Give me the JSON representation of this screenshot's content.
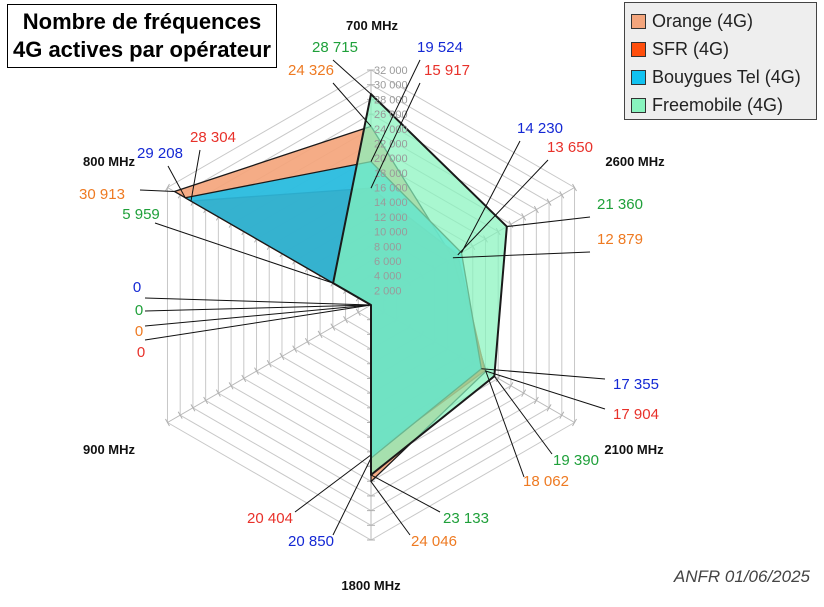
{
  "title": {
    "line1": "Nombre de fréquences",
    "line2": "4G actives par opérateur"
  },
  "source": "ANFR 01/06/2025",
  "legend": [
    {
      "name": "Orange (4G)",
      "color": "#f4a57c"
    },
    {
      "name": "SFR (4G)",
      "color": "#ff4e0c"
    },
    {
      "name": "Bouygues Tel (4G)",
      "color": "#12c2f0"
    },
    {
      "name": "Freemobile (4G)",
      "color": "#88f4be"
    }
  ],
  "chart_data": {
    "type": "radar",
    "axes": [
      "700 MHz",
      "2600 MHz",
      "2100 MHz",
      "1800 MHz",
      "900 MHz",
      "800 MHz"
    ],
    "rmax": 32000,
    "ticks": [
      "2 000",
      "4 000",
      "6 000",
      "8 000",
      "10 000",
      "12 000",
      "14 000",
      "16 000",
      "18 000",
      "20 000",
      "22 000",
      "24 000",
      "26 000",
      "28 000",
      "30 000",
      "32 000"
    ],
    "grid": true,
    "series": [
      {
        "name": "Orange (4G)",
        "color": "#f4a57c",
        "values": [
          24326,
          12879,
          18062,
          24046,
          0,
          30913
        ],
        "labels": [
          "24 326",
          "12 879",
          "18 062",
          "24 046",
          "0",
          "30 913"
        ]
      },
      {
        "name": "SFR (4G)",
        "color": "#ff4e0c",
        "values": [
          15917,
          13650,
          17904,
          20404,
          0,
          28304
        ],
        "labels": [
          "15 917",
          "13 650",
          "17 904",
          "20 404",
          "0",
          "28 304"
        ]
      },
      {
        "name": "Bouygues Tel (4G)",
        "color": "#12c2f0",
        "values": [
          19524,
          14230,
          17355,
          20850,
          0,
          29208
        ],
        "labels": [
          "19 524",
          "14 230",
          "17 355",
          "20 850",
          "0",
          "29 208"
        ]
      },
      {
        "name": "Freemobile (4G)",
        "color": "#88f4be",
        "values": [
          28715,
          21360,
          19390,
          23133,
          0,
          5959
        ],
        "labels": [
          "28 715",
          "21 360",
          "19 390",
          "23 133",
          "0",
          "5 959"
        ]
      }
    ],
    "label_colors": {
      "Orange (4G)": "#ee7a22",
      "SFR (4G)": "#e8312a",
      "Bouygues Tel (4G)": "#1428d4",
      "Freemobile (4G)": "#1fa03a"
    }
  }
}
